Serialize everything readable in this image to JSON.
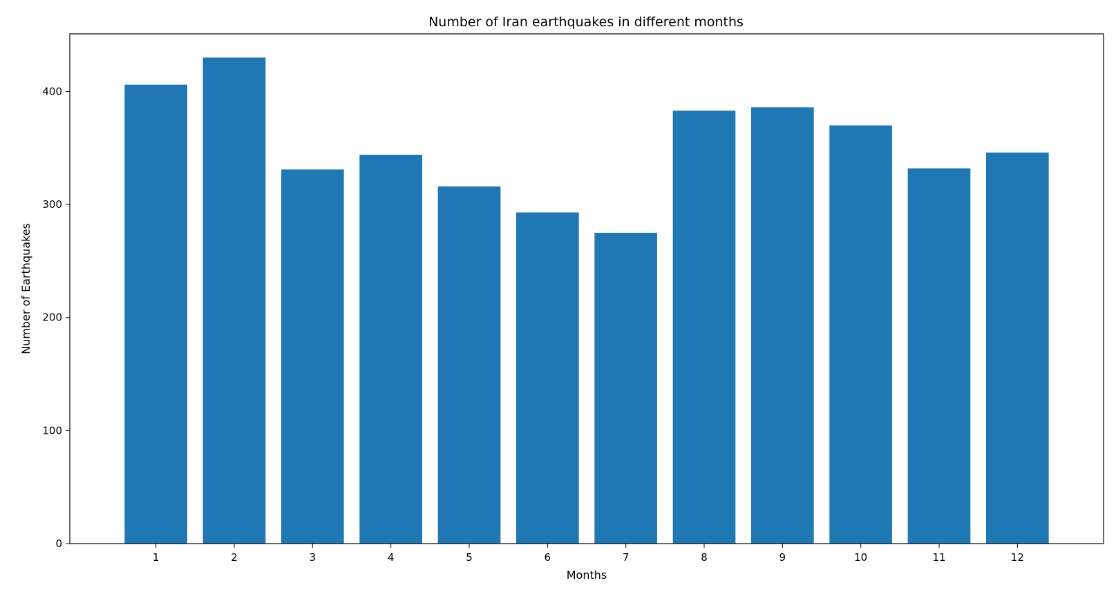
{
  "chart_data": {
    "type": "bar",
    "title": "Number of Iran earthquakes in different months",
    "xlabel": "Months",
    "ylabel": "Number of Earthquakes",
    "categories": [
      "1",
      "2",
      "3",
      "4",
      "5",
      "6",
      "7",
      "8",
      "9",
      "10",
      "11",
      "12"
    ],
    "values": [
      406,
      430,
      331,
      344,
      316,
      293,
      275,
      383,
      386,
      370,
      332,
      346
    ],
    "ylim": [
      0,
      451
    ],
    "yticks": [
      0,
      100,
      200,
      300,
      400
    ],
    "grid": false,
    "legend": "none",
    "bar_color": "#1f77b4"
  }
}
